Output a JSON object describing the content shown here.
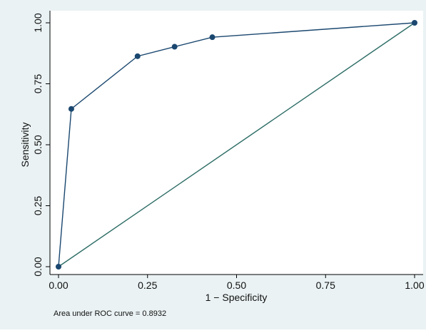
{
  "chart_data": {
    "type": "line",
    "ylabel": "Sensitivity",
    "xlabel": "1 − Specificity",
    "xlim": [
      0,
      1
    ],
    "ylim": [
      0,
      1
    ],
    "x_ticks": [
      "0.00",
      "0.25",
      "0.50",
      "0.75",
      "1.00"
    ],
    "y_ticks": [
      "0.00",
      "0.25",
      "0.50",
      "0.75",
      "1.00"
    ],
    "grid": false,
    "legend": "none",
    "series": [
      {
        "kind": "roc-curve",
        "color": "#1a476f",
        "markers": true,
        "x": [
          0.0,
          0.036,
          0.222,
          0.326,
          0.432,
          1.0
        ],
        "y": [
          0.0,
          0.647,
          0.863,
          0.902,
          0.941,
          1.0
        ]
      },
      {
        "kind": "reference-diagonal",
        "color": "#2d6d66",
        "markers": false,
        "x": [
          0.0,
          1.0
        ],
        "y": [
          0.0,
          1.0
        ]
      }
    ],
    "note": "Area under ROC curve = 0.8932"
  },
  "colors": {
    "background": "#eaf2f3",
    "plot_background": "#ffffff",
    "curve": "#1a476f",
    "reference": "#2d6d66"
  }
}
